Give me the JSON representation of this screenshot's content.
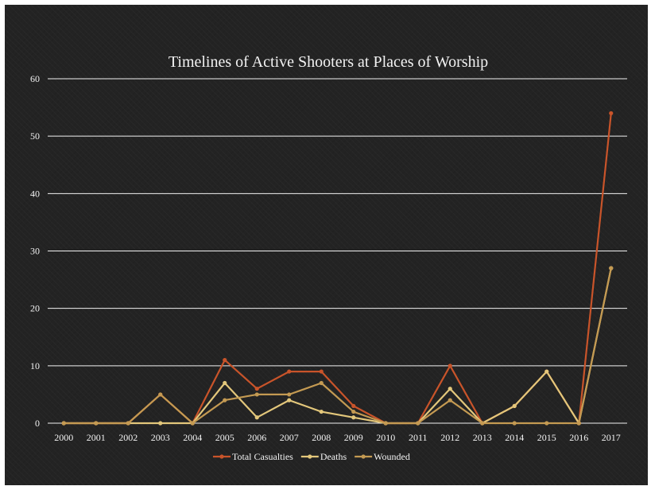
{
  "chart_data": {
    "type": "line",
    "title": "Timelines of Active Shooters at Places of Worship",
    "xlabel": "",
    "ylabel": "",
    "categories": [
      "2000",
      "2001",
      "2002",
      "2003",
      "2004",
      "2005",
      "2006",
      "2007",
      "2008",
      "2009",
      "2010",
      "2011",
      "2012",
      "2013",
      "2014",
      "2015",
      "2016",
      "2017"
    ],
    "ylim": [
      0,
      60
    ],
    "yticks": [
      0,
      10,
      20,
      30,
      40,
      50,
      60
    ],
    "grid": true,
    "legend_position": "bottom",
    "series": [
      {
        "name": "Total Casualties",
        "color": "#c9542a",
        "values": [
          0,
          0,
          0,
          5,
          0,
          11,
          6,
          9,
          9,
          3,
          0,
          0,
          10,
          0,
          3,
          9,
          0,
          54
        ]
      },
      {
        "name": "Deaths",
        "color": "#e3c77b",
        "values": [
          0,
          0,
          0,
          0,
          0,
          7,
          1,
          4,
          2,
          1,
          0,
          0,
          6,
          0,
          3,
          9,
          0,
          27
        ]
      },
      {
        "name": "Wounded",
        "color": "#c49a52",
        "values": [
          0,
          0,
          0,
          5,
          0,
          4,
          5,
          5,
          7,
          2,
          0,
          0,
          4,
          0,
          0,
          0,
          0,
          27
        ]
      }
    ]
  }
}
